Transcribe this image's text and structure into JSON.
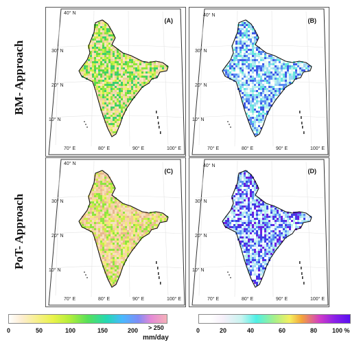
{
  "row_labels": [
    "BM- Approach",
    "PoT- Approach"
  ],
  "panels": [
    {
      "label": "(A)",
      "scheme": "precip"
    },
    {
      "label": "(B)",
      "scheme": "percent"
    },
    {
      "label": "(C)",
      "scheme": "precip_pot"
    },
    {
      "label": "(D)",
      "scheme": "percent_pot"
    }
  ],
  "lat_ticks": [
    "40° N",
    "30° N",
    "20° N",
    "10° N"
  ],
  "lon_ticks": [
    "70° E",
    "80° E",
    "90° E",
    "100° E"
  ],
  "colorbar_left": {
    "ticks": [
      "0",
      "50",
      "100",
      "150",
      "200",
      "> 250"
    ],
    "unit": "mm/day"
  },
  "colorbar_right": {
    "ticks": [
      "0",
      "20",
      "40",
      "60",
      "80",
      "100 %"
    ]
  },
  "colors": {
    "precip": [
      "#fbe3c4",
      "#f3ec7a",
      "#c9ef48",
      "#8fe640",
      "#5bd848",
      "#3ccf6e",
      "#eacf9a",
      "#f2d9b0"
    ],
    "precip_pot": [
      "#f6d5a8",
      "#f1c898",
      "#f3ec7a",
      "#c9ef48",
      "#8fe640",
      "#e7b88e",
      "#f7dfc0"
    ],
    "percent": [
      "#ffffff",
      "#e8f8f6",
      "#b6f1ec",
      "#66e6de",
      "#9ed7f5",
      "#5a8cf2",
      "#3f5ae6"
    ],
    "percent_pot": [
      "#ffffff",
      "#dfeefd",
      "#9ed7f5",
      "#5a8cf2",
      "#3f3ee6",
      "#6a22e2",
      "#b6f1ec"
    ]
  }
}
